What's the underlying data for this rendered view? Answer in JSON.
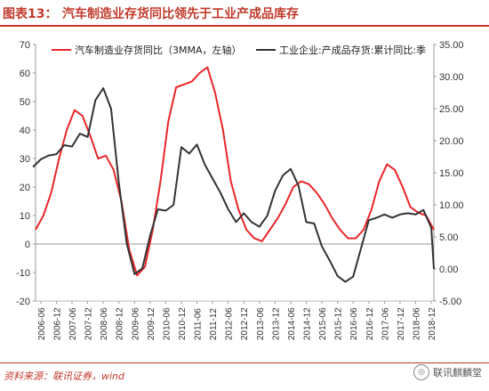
{
  "header": {
    "label": "图表13：",
    "title": "汽车制造业存货同比领先于工业产成品库存"
  },
  "footer": {
    "source": "资料来源：联讯证券，wind",
    "watermark": "联讯麒麟堂"
  },
  "chart_data": {
    "type": "line",
    "title": "",
    "y_left": {
      "min": -20,
      "max": 70,
      "step": 10,
      "ticks": [
        "-20",
        "-10",
        "0",
        "10",
        "20",
        "30",
        "40",
        "50",
        "60",
        "70"
      ]
    },
    "y_right": {
      "min": -5,
      "max": 35,
      "step": 5,
      "ticks": [
        "-5.00",
        "0.00",
        "5.00",
        "10.00",
        "15.00",
        "20.00",
        "25.00",
        "30.00",
        "35.00"
      ]
    },
    "x_tick_labels": [
      "2006-06",
      "2006-12",
      "2007-06",
      "2007-12",
      "2008-06",
      "2008-12",
      "2009-06",
      "2009-12",
      "2010-06",
      "2010-12",
      "2011-06",
      "2011-12",
      "2012-06",
      "2012-12",
      "2013-06",
      "2013-12",
      "2014-06",
      "2014-12",
      "2015-06",
      "2015-12",
      "2016-06",
      "2016-12",
      "2017-06",
      "2017-12",
      "2018-06",
      "2018-12"
    ],
    "x_range": [
      "2006-04",
      "2019-01"
    ],
    "grid": false,
    "legend": "top",
    "series": [
      {
        "name": "汽车制造业存货同比（3MMA，左轴）",
        "axis": "left",
        "color": "#e8262a",
        "x": [
          "2006-04",
          "2006-07",
          "2006-10",
          "2007-01",
          "2007-04",
          "2007-07",
          "2007-10",
          "2008-01",
          "2008-04",
          "2008-07",
          "2008-10",
          "2009-01",
          "2009-04",
          "2009-07",
          "2009-10",
          "2010-01",
          "2010-04",
          "2010-07",
          "2010-10",
          "2011-01",
          "2011-04",
          "2011-07",
          "2011-10",
          "2012-01",
          "2012-04",
          "2012-07",
          "2012-10",
          "2013-01",
          "2013-04",
          "2013-07",
          "2013-10",
          "2014-01",
          "2014-04",
          "2014-07",
          "2014-10",
          "2015-01",
          "2015-04",
          "2015-07",
          "2015-10",
          "2016-01",
          "2016-04",
          "2016-07",
          "2016-10",
          "2017-01",
          "2017-04",
          "2017-07",
          "2017-10",
          "2018-01",
          "2018-04",
          "2018-07",
          "2018-10",
          "2019-01"
        ],
        "y": [
          5,
          10,
          18,
          30,
          40,
          47,
          45,
          38,
          30,
          31,
          26,
          15,
          -2,
          -11,
          -8,
          5,
          22,
          43,
          55,
          56,
          57,
          60,
          62,
          53,
          40,
          22,
          12,
          5,
          2,
          1,
          5,
          9,
          14,
          20,
          22,
          21,
          18,
          14,
          9,
          5,
          2,
          2,
          5,
          12,
          22,
          28,
          26,
          20,
          13,
          11,
          10,
          5
        ]
      },
      {
        "name": "工业企业:产成品存货:累计同比:季",
        "axis": "right",
        "color": "#333333",
        "x": [
          "2006-03",
          "2006-06",
          "2006-09",
          "2006-12",
          "2007-03",
          "2007-06",
          "2007-09",
          "2007-12",
          "2008-03",
          "2008-06",
          "2008-09",
          "2008-12",
          "2009-03",
          "2009-06",
          "2009-09",
          "2009-12",
          "2010-03",
          "2010-06",
          "2010-09",
          "2010-12",
          "2011-03",
          "2011-06",
          "2011-09",
          "2011-12",
          "2012-03",
          "2012-06",
          "2012-09",
          "2012-12",
          "2013-03",
          "2013-06",
          "2013-09",
          "2013-12",
          "2014-03",
          "2014-06",
          "2014-09",
          "2014-12",
          "2015-03",
          "2015-06",
          "2015-09",
          "2015-12",
          "2016-03",
          "2016-06",
          "2016-09",
          "2016-12",
          "2017-03",
          "2017-06",
          "2017-09",
          "2017-12",
          "2018-03",
          "2018-06",
          "2018-09",
          "2018-12",
          "2019-01"
        ],
        "y": [
          15.9,
          17.1,
          17.7,
          17.9,
          19.3,
          19.1,
          21.1,
          20.6,
          26.3,
          28.2,
          25,
          13.4,
          4,
          -0.8,
          0.1,
          5.2,
          9.3,
          9.1,
          10,
          19,
          18,
          19.4,
          16.3,
          14.1,
          11.9,
          9.3,
          7.3,
          8.7,
          7.3,
          6.6,
          8.3,
          12.2,
          14.6,
          15.6,
          13,
          7.3,
          7.1,
          3.5,
          1.3,
          -1.1,
          -2,
          -1.2,
          3.2,
          7.6,
          8,
          8.5,
          8,
          8.5,
          8.7,
          8.5,
          9.2,
          6.4,
          0
        ]
      }
    ]
  }
}
